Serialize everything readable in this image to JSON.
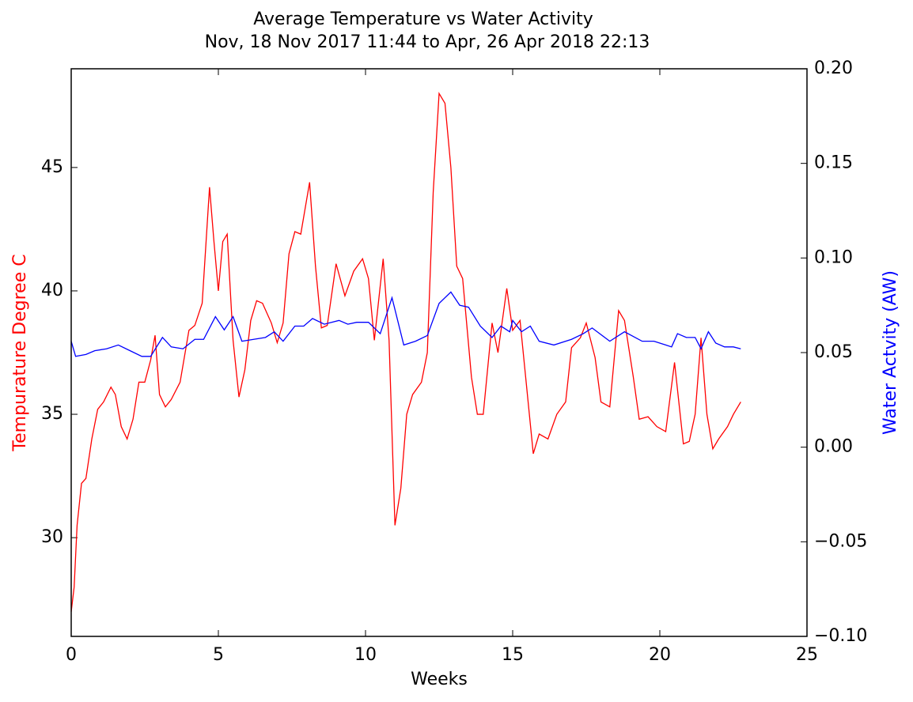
{
  "chart_data": {
    "type": "line",
    "title": "Average Temperature vs Water Activity",
    "subtitle": "Nov, 18 Nov 2017 11:44 to Apr, 26 Apr 2018 22:13",
    "x_label": "Weeks",
    "y_label": "Tempurature Degree C",
    "y2_label": "Water Actvity (AW)",
    "y_label_color": "#ff0000",
    "y2_label_color": "#0000ff",
    "xlim": [
      0,
      25
    ],
    "xticks": [
      0,
      5,
      10,
      15,
      20,
      25
    ],
    "ylim": [
      26,
      49
    ],
    "yticks": [
      30,
      35,
      40,
      45
    ],
    "y2lim": [
      -0.1,
      0.2
    ],
    "y2ticks": [
      {
        "value": -0.1,
        "label": "−0.10"
      },
      {
        "value": -0.05,
        "label": "−0.05"
      },
      {
        "value": 0,
        "label": "0.00"
      },
      0.05,
      {
        "value": 0.1,
        "label": "0.10"
      },
      0.15,
      {
        "value": 0.2,
        "label": "0.20"
      }
    ],
    "grid": false,
    "series": [
      {
        "name": "Temperature",
        "color": "#ff0000",
        "axis": "y",
        "x": [
          0,
          0.1,
          0.2,
          0.35,
          0.5,
          0.7,
          0.9,
          1.1,
          1.35,
          1.5,
          1.7,
          1.9,
          2.1,
          2.3,
          2.5,
          2.7,
          2.85,
          3.0,
          3.2,
          3.4,
          3.7,
          4.0,
          4.2,
          4.45,
          4.7,
          4.85,
          5.0,
          5.15,
          5.3,
          5.5,
          5.7,
          5.9,
          6.1,
          6.3,
          6.5,
          6.8,
          7.0,
          7.2,
          7.4,
          7.6,
          7.8,
          8.1,
          8.3,
          8.5,
          8.7,
          9.0,
          9.3,
          9.6,
          9.9,
          10.1,
          10.3,
          10.6,
          10.8,
          11.0,
          11.2,
          11.4,
          11.6,
          11.9,
          12.1,
          12.3,
          12.5,
          12.7,
          12.9,
          13.1,
          13.3,
          13.6,
          13.8,
          14.0,
          14.3,
          14.5,
          14.8,
          15.0,
          15.25,
          15.45,
          15.7,
          15.9,
          16.2,
          16.5,
          16.8,
          17.0,
          17.3,
          17.5,
          17.8,
          18.0,
          18.3,
          18.6,
          18.8,
          19.1,
          19.3,
          19.6,
          19.9,
          20.2,
          20.5,
          20.8,
          21.0,
          21.2,
          21.4,
          21.6,
          21.8,
          22.0,
          22.3,
          22.5,
          22.75
        ],
        "values": [
          27.0,
          28,
          30.5,
          32.2,
          32.4,
          34,
          35.2,
          35.5,
          36.1,
          35.8,
          34.5,
          34.0,
          34.8,
          36.3,
          36.3,
          37.2,
          38.2,
          35.8,
          35.3,
          35.6,
          36.3,
          38.4,
          38.6,
          39.5,
          44.2,
          42,
          40.0,
          42,
          42.3,
          38,
          35.7,
          36.8,
          38.8,
          39.6,
          39.5,
          38.7,
          37.9,
          38.7,
          41.5,
          42.4,
          42.3,
          44.4,
          41,
          38.5,
          38.6,
          41.1,
          39.8,
          40.8,
          41.3,
          40.5,
          38.0,
          41.3,
          38,
          30.5,
          32,
          35,
          35.8,
          36.3,
          37.5,
          44,
          48.0,
          47.6,
          45,
          41,
          40.5,
          36.5,
          35.0,
          35.0,
          38.7,
          37.5,
          40.1,
          38.4,
          38.8,
          36.4,
          33.4,
          34.2,
          34.0,
          35.0,
          35.5,
          37.7,
          38.1,
          38.7,
          37.3,
          35.5,
          35.3,
          39.2,
          38.8,
          36.5,
          34.8,
          34.9,
          34.5,
          34.3,
          37.1,
          33.8,
          33.9,
          35,
          38.1,
          35,
          33.6,
          34.0,
          34.5,
          35.0,
          35.5
        ]
      },
      {
        "name": "Water Activity",
        "color": "#0000ff",
        "axis": "y2",
        "x": [
          0,
          0.15,
          0.5,
          0.8,
          1.2,
          1.6,
          2.0,
          2.4,
          2.7,
          3.1,
          3.4,
          3.8,
          4.2,
          4.5,
          4.9,
          5.2,
          5.5,
          5.8,
          6.2,
          6.6,
          6.9,
          7.2,
          7.6,
          7.9,
          8.2,
          8.6,
          9.1,
          9.4,
          9.7,
          10.1,
          10.5,
          10.9,
          11.3,
          11.7,
          12.1,
          12.5,
          12.9,
          13.2,
          13.5,
          13.9,
          14.3,
          14.6,
          14.9,
          15.0,
          15.3,
          15.6,
          15.9,
          16.4,
          17.0,
          17.4,
          17.7,
          18.3,
          18.8,
          19.4,
          19.8,
          20.2,
          20.4,
          20.6,
          20.9,
          21.2,
          21.4,
          21.65,
          21.9,
          22.2,
          22.5,
          22.75
        ],
        "values": [
          0.056,
          0.048,
          0.049,
          0.051,
          0.052,
          0.054,
          0.051,
          0.048,
          0.048,
          0.058,
          0.053,
          0.052,
          0.057,
          0.057,
          0.069,
          0.062,
          0.069,
          0.056,
          0.057,
          0.058,
          0.061,
          0.056,
          0.064,
          0.064,
          0.068,
          0.065,
          0.067,
          0.065,
          0.066,
          0.066,
          0.06,
          0.079,
          0.054,
          0.056,
          0.059,
          0.076,
          0.082,
          0.075,
          0.074,
          0.064,
          0.058,
          0.064,
          0.061,
          0.067,
          0.061,
          0.064,
          0.056,
          0.054,
          0.057,
          0.06,
          0.063,
          0.056,
          0.061,
          0.056,
          0.056,
          0.054,
          0.053,
          0.06,
          0.058,
          0.058,
          0.052,
          0.061,
          0.055,
          0.053,
          0.053,
          0.052
        ]
      }
    ]
  }
}
